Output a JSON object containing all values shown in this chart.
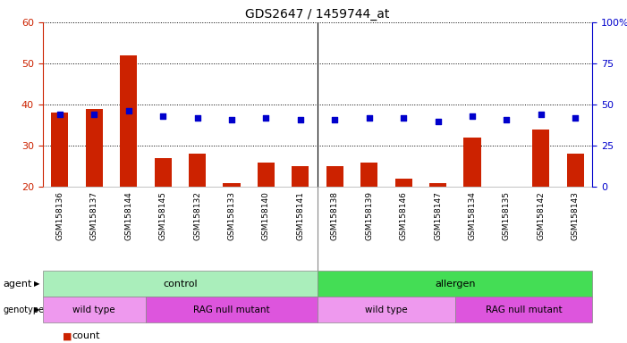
{
  "title": "GDS2647 / 1459744_at",
  "samples": [
    "GSM158136",
    "GSM158137",
    "GSM158144",
    "GSM158145",
    "GSM158132",
    "GSM158133",
    "GSM158140",
    "GSM158141",
    "GSM158138",
    "GSM158139",
    "GSM158146",
    "GSM158147",
    "GSM158134",
    "GSM158135",
    "GSM158142",
    "GSM158143"
  ],
  "counts": [
    38,
    39,
    52,
    27,
    28,
    21,
    26,
    25,
    25,
    26,
    22,
    21,
    32,
    20,
    34,
    28
  ],
  "percentiles": [
    44,
    44,
    46,
    43,
    42,
    41,
    42,
    41,
    41,
    42,
    42,
    40,
    43,
    41,
    44,
    42
  ],
  "ylim_left": [
    20,
    60
  ],
  "ylim_right": [
    0,
    100
  ],
  "yticks_left": [
    20,
    30,
    40,
    50,
    60
  ],
  "yticks_right": [
    0,
    25,
    50,
    75,
    100
  ],
  "ytick_labels_right": [
    "0",
    "25",
    "50",
    "75",
    "100%"
  ],
  "bar_color": "#cc2200",
  "dot_color": "#0000cc",
  "agent_groups": [
    {
      "label": "control",
      "start": 0,
      "end": 8,
      "color": "#aaeebb"
    },
    {
      "label": "allergen",
      "start": 8,
      "end": 16,
      "color": "#44dd55"
    }
  ],
  "genotype_groups": [
    {
      "label": "wild type",
      "start": 0,
      "end": 3,
      "color": "#ee99ee"
    },
    {
      "label": "RAG null mutant",
      "start": 3,
      "end": 8,
      "color": "#dd55dd"
    },
    {
      "label": "wild type",
      "start": 8,
      "end": 12,
      "color": "#ee99ee"
    },
    {
      "label": "RAG null mutant",
      "start": 12,
      "end": 16,
      "color": "#dd55dd"
    }
  ],
  "background_color": "#ffffff",
  "xlabel_bg": "#dddddd",
  "tick_color_left": "#cc2200",
  "tick_color_right": "#0000cc",
  "sep_after": 8,
  "n_control": 8,
  "n_allergen": 8,
  "n_wt1": 3,
  "n_rag1": 5,
  "n_wt2": 4,
  "n_rag2": 4
}
